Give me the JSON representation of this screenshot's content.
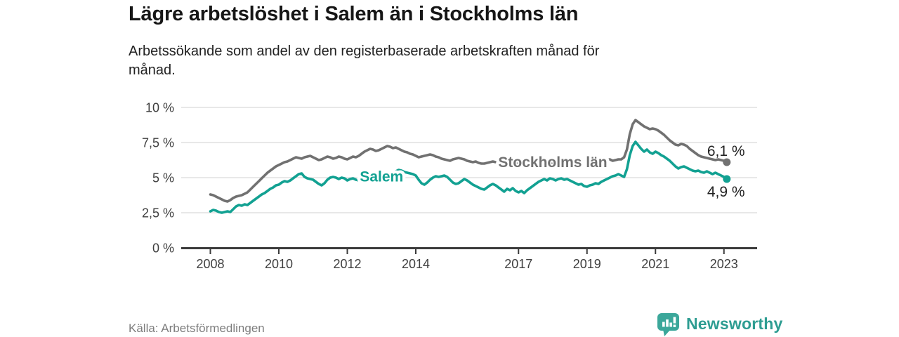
{
  "header": {
    "title": "Lägre arbetslöshet i Salem än i Stockholms län",
    "subtitle_lines": [
      "Arbetssökande som andel av den registerbaserade arbetskraften månad för",
      "månad."
    ]
  },
  "footer": {
    "source": "Källa: Arbetsförmedlingen",
    "brand": "Newsworthy",
    "brand_color": "#2e9d92",
    "brand_icon": "bar-chart-speech-bubble-icon",
    "brand_icon_color": "#3ba79a"
  },
  "colors": {
    "axis": "#3c3c3c",
    "gridline": "#d9d9d9",
    "tick_label": "#3f3f3f",
    "end_label_text": "#222222"
  },
  "chart_data": {
    "type": "line",
    "title": "Lägre arbetslöshet i Salem än i Stockholms län",
    "subtitle": "Arbetssökande som andel av den registerbaserade arbetskraften månad för månad.",
    "x_unit": "month",
    "x_start": "2008-01",
    "x_end": "2023-02",
    "x_tick_years": [
      2008,
      2010,
      2012,
      2014,
      2017,
      2019,
      2021,
      2023
    ],
    "x_tick_labels": [
      "2008",
      "2010",
      "2012",
      "2014",
      "2017",
      "2019",
      "2021",
      "2023"
    ],
    "y_ticks": [
      0,
      2.5,
      5,
      7.5,
      10
    ],
    "y_tick_labels": [
      "0 %",
      "2,5 %",
      "5 %",
      "7,5 %",
      "10 %"
    ],
    "ylim": [
      0,
      10
    ],
    "grid": true,
    "legend_position": "inline-labels",
    "series": [
      {
        "key": "stockholm",
        "name": "Stockholms län",
        "color": "#717171",
        "end_label": "6,1 %",
        "end_label_position": "above",
        "end_value": 6.1,
        "inline_label": {
          "x_year": 2018.0,
          "baseline_value": 5.75
        },
        "values": [
          3.8,
          3.75,
          3.65,
          3.55,
          3.45,
          3.35,
          3.3,
          3.4,
          3.55,
          3.65,
          3.7,
          3.75,
          3.85,
          3.95,
          4.15,
          4.35,
          4.55,
          4.75,
          4.95,
          5.15,
          5.35,
          5.5,
          5.65,
          5.8,
          5.9,
          6.0,
          6.1,
          6.15,
          6.25,
          6.35,
          6.45,
          6.4,
          6.35,
          6.45,
          6.5,
          6.55,
          6.45,
          6.35,
          6.25,
          6.3,
          6.4,
          6.5,
          6.45,
          6.35,
          6.4,
          6.5,
          6.45,
          6.35,
          6.3,
          6.4,
          6.5,
          6.45,
          6.55,
          6.7,
          6.85,
          6.95,
          7.05,
          7.0,
          6.9,
          6.95,
          7.05,
          7.15,
          7.25,
          7.2,
          7.1,
          7.15,
          7.05,
          6.95,
          6.85,
          6.8,
          6.7,
          6.65,
          6.55,
          6.45,
          6.5,
          6.55,
          6.6,
          6.65,
          6.6,
          6.5,
          6.45,
          6.35,
          6.3,
          6.25,
          6.2,
          6.3,
          6.35,
          6.4,
          6.35,
          6.3,
          6.2,
          6.15,
          6.1,
          6.15,
          6.05,
          6.0,
          6.0,
          6.05,
          6.1,
          6.15,
          6.1,
          6.05,
          6.0,
          6.05,
          6.1,
          6.05,
          6.1,
          6.1,
          6.1,
          6.05,
          6.0,
          6.05,
          6.1,
          6.15,
          6.2,
          6.15,
          6.1,
          6.05,
          6.0,
          6.05,
          6.0,
          5.95,
          6.0,
          6.05,
          6.0,
          6.05,
          6.1,
          6.05,
          6.0,
          6.05,
          6.1,
          6.05,
          6.0,
          6.05,
          6.1,
          6.05,
          6.1,
          6.15,
          6.2,
          6.25,
          6.3,
          6.2,
          6.25,
          6.3,
          6.3,
          6.45,
          7.0,
          8.1,
          8.8,
          9.1,
          8.95,
          8.8,
          8.65,
          8.55,
          8.45,
          8.5,
          8.45,
          8.35,
          8.2,
          8.05,
          7.85,
          7.65,
          7.5,
          7.35,
          7.3,
          7.4,
          7.35,
          7.25,
          7.05,
          6.9,
          6.75,
          6.6,
          6.5,
          6.45,
          6.4,
          6.35,
          6.3,
          6.25,
          6.3,
          6.25,
          6.2,
          6.1
        ]
      },
      {
        "key": "salem",
        "name": "Salem",
        "color": "#12a192",
        "end_label": "4,9 %",
        "end_label_position": "below",
        "end_value": 4.9,
        "inline_label": {
          "x_year": 2013.0,
          "baseline_value": 4.72
        },
        "values": [
          2.6,
          2.7,
          2.65,
          2.55,
          2.5,
          2.55,
          2.6,
          2.55,
          2.75,
          2.95,
          3.05,
          3.0,
          3.1,
          3.05,
          3.2,
          3.35,
          3.5,
          3.65,
          3.8,
          3.9,
          4.05,
          4.2,
          4.3,
          4.45,
          4.5,
          4.65,
          4.75,
          4.7,
          4.8,
          4.95,
          5.1,
          5.25,
          5.3,
          5.05,
          4.95,
          4.9,
          4.85,
          4.7,
          4.55,
          4.45,
          4.6,
          4.85,
          5.0,
          5.05,
          5.0,
          4.9,
          5.0,
          4.95,
          4.8,
          4.9,
          4.95,
          4.85,
          4.8,
          4.9,
          5.0,
          5.05,
          4.95,
          5.0,
          5.1,
          5.05,
          5.1,
          5.2,
          5.3,
          5.35,
          5.3,
          5.45,
          5.55,
          5.5,
          5.4,
          5.35,
          5.3,
          5.25,
          5.15,
          4.85,
          4.6,
          4.5,
          4.65,
          4.85,
          5.0,
          5.1,
          5.05,
          5.1,
          5.15,
          5.05,
          4.85,
          4.65,
          4.55,
          4.6,
          4.75,
          4.9,
          4.8,
          4.65,
          4.5,
          4.4,
          4.3,
          4.2,
          4.15,
          4.3,
          4.45,
          4.55,
          4.45,
          4.3,
          4.15,
          4.0,
          4.2,
          4.1,
          4.25,
          4.05,
          3.95,
          4.05,
          3.9,
          4.1,
          4.25,
          4.4,
          4.55,
          4.7,
          4.8,
          4.9,
          4.8,
          4.95,
          4.9,
          4.8,
          4.9,
          4.95,
          4.85,
          4.9,
          4.8,
          4.7,
          4.6,
          4.5,
          4.55,
          4.4,
          4.35,
          4.45,
          4.5,
          4.6,
          4.55,
          4.7,
          4.8,
          4.9,
          5.0,
          5.1,
          5.15,
          5.25,
          5.15,
          5.05,
          5.6,
          6.6,
          7.25,
          7.55,
          7.3,
          7.05,
          6.85,
          7.0,
          6.8,
          6.7,
          6.85,
          6.75,
          6.6,
          6.5,
          6.35,
          6.2,
          6.0,
          5.8,
          5.65,
          5.75,
          5.8,
          5.7,
          5.6,
          5.5,
          5.45,
          5.5,
          5.4,
          5.35,
          5.45,
          5.35,
          5.25,
          5.35,
          5.25,
          5.15,
          5.05,
          4.9
        ]
      }
    ]
  }
}
